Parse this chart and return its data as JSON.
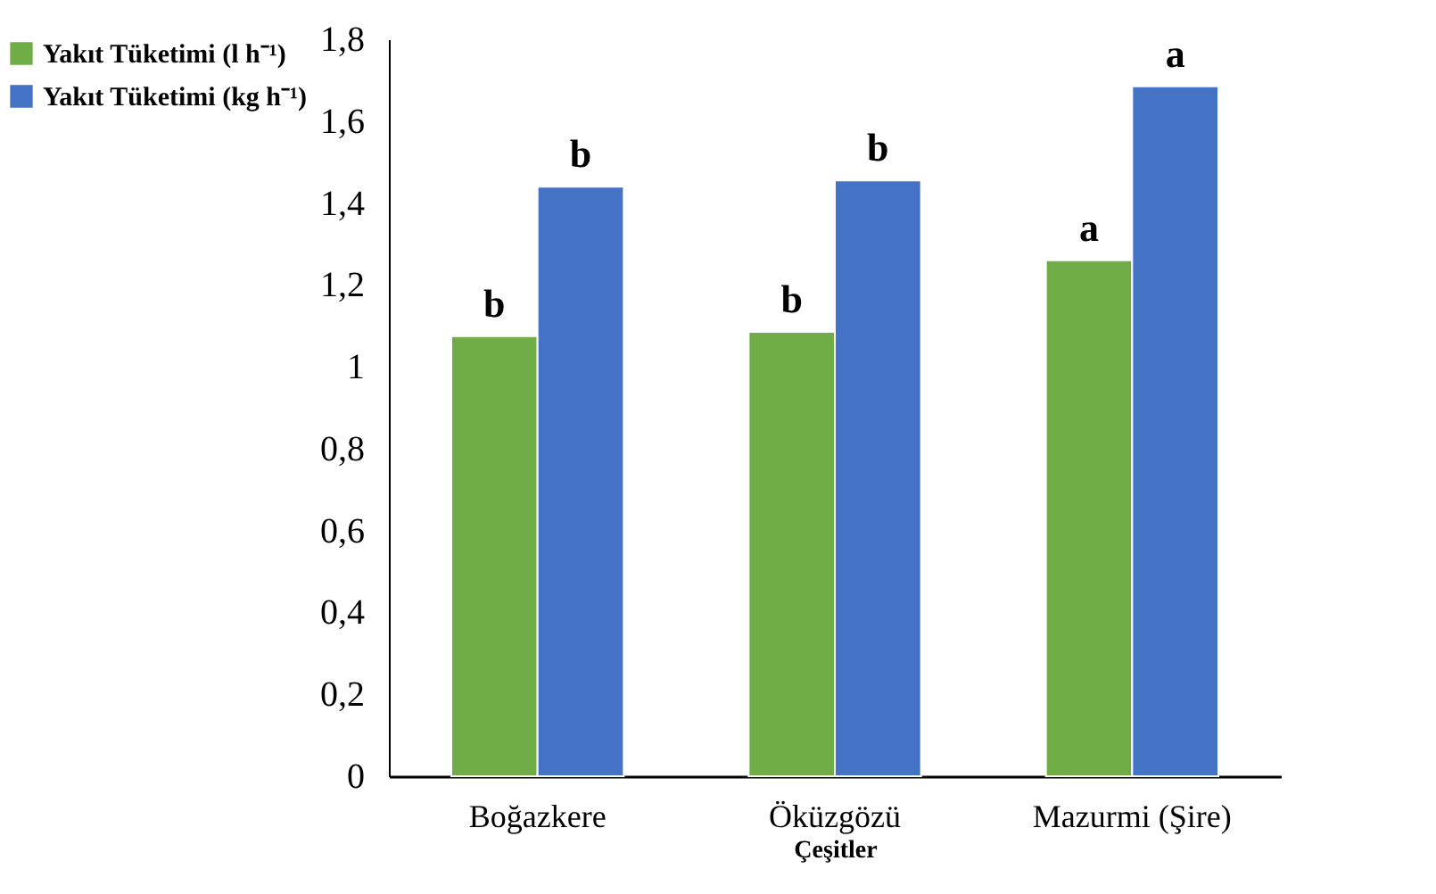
{
  "chart_data": {
    "type": "bar",
    "xlabel": "Çeşitler",
    "categories": [
      "Boğazkere",
      "Öküzgözü",
      "Mazurmi (Şire)"
    ],
    "series": [
      {
        "name": "Yakıt Tüketimi (l h⁻¹)",
        "color": "#70ad47",
        "values": [
          1.075,
          1.085,
          1.26
        ]
      },
      {
        "name": "Yakıt Tüketimi (kg h⁻¹)",
        "color": "#4472c4",
        "values": [
          1.44,
          1.455,
          1.685
        ]
      }
    ],
    "ylim": [
      0,
      1.8
    ],
    "yticks": [
      0,
      {
        "value": 0.2,
        "label": "0,2"
      },
      {
        "value": 0.4,
        "label": "0,4"
      },
      {
        "value": 0.6,
        "label": "0,6"
      },
      {
        "value": 0.8,
        "label": "0,8"
      },
      1,
      {
        "value": 1.2,
        "label": "1,2"
      },
      {
        "value": 1.4,
        "label": "1,4"
      },
      {
        "value": 1.6,
        "label": "1,6"
      },
      {
        "value": 1.8,
        "label": "1,8"
      }
    ],
    "annotations": [
      {
        "text": "b",
        "x": "Boğazkere",
        "y": 1.075
      },
      {
        "text": "b",
        "x": "Boğazkere",
        "y": 1.44
      },
      {
        "text": "b",
        "x": "Öküzgözü",
        "y": 1.085
      },
      {
        "text": "b",
        "x": "Öküzgözü",
        "y": 1.455
      },
      {
        "text": "a",
        "x": "Mazurmi (Şire)",
        "y": 1.26
      },
      {
        "text": "a",
        "x": "Mazurmi (Şire)",
        "y": 1.685
      }
    ],
    "grid": false,
    "legend": "left"
  }
}
